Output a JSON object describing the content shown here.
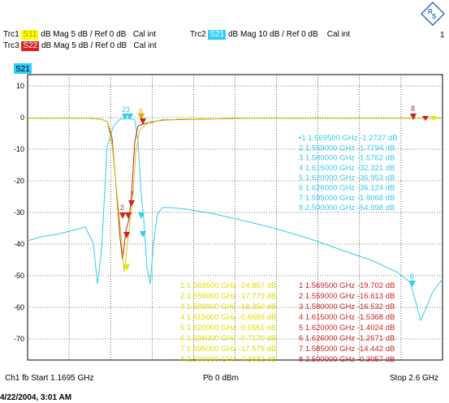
{
  "header": {
    "traces": [
      {
        "id": "Trc1",
        "param": "S11",
        "format": "dB Mag",
        "scale": "5 dB /",
        "ref": "Ref 0 dB",
        "cal": "Cal int",
        "color": "#ffff00",
        "textColor": "#b0a000"
      },
      {
        "id": "Trc2",
        "param": "S21",
        "format": "dB Mag",
        "scale": "10 dB /",
        "ref": "Ref 0 dB",
        "cal": "Cal int",
        "color": "#33ccff",
        "textColor": "#ffffff"
      },
      {
        "id": "Trc3",
        "param": "S22",
        "format": "dB Mag",
        "scale": "5 dB /",
        "ref": "Ref 0 dB",
        "cal": "Cal int",
        "color": "#dd2222",
        "textColor": "#ffffff"
      }
    ],
    "channel_number": "1"
  },
  "active_trace_label": "S21",
  "y_ticks": [
    "10",
    "0",
    "-10",
    "-20",
    "-30",
    "-40",
    "-50",
    "-60",
    "-70"
  ],
  "markers_s21": [
    {
      "n": "•1",
      "f": "1.569500 GHz",
      "v": "-1.2737 dB"
    },
    {
      "n": "2",
      "f": "1.559000 GHz",
      "v": "-1.7794 dB"
    },
    {
      "n": "3",
      "f": "1.580000 GHz",
      "v": "-1.5762 dB"
    },
    {
      "n": "4",
      "f": "1.615000 GHz",
      "v": "-32.321 dB"
    },
    {
      "n": "5",
      "f": "1.620000 GHz",
      "v": "-36.953 dB"
    },
    {
      "n": "6",
      "f": "1.626000 GHz",
      "v": "-36.124 dB"
    },
    {
      "n": "7",
      "f": "1.595000 GHz",
      "v": "-1.9068 dB"
    },
    {
      "n": "8",
      "f": "2.500000 GHz",
      "v": "-54.998 dB"
    }
  ],
  "markers_s11": [
    {
      "n": "1",
      "f": "1.569500 GHz",
      "v": "-24.857 dB"
    },
    {
      "n": "2",
      "f": "1.559000 GHz",
      "v": "-17.779 dB"
    },
    {
      "n": "3",
      "f": "1.580000 GHz",
      "v": "-18.350 dB"
    },
    {
      "n": "4",
      "f": "1.615000 GHz",
      "v": "-0.6569 dB"
    },
    {
      "n": "5",
      "f": "1.620000 GHz",
      "v": "-0.6561 dB"
    },
    {
      "n": "6",
      "f": "1.626000 GHz",
      "v": "-0.7170 dB"
    },
    {
      "n": "7",
      "f": "1.595000 GHz",
      "v": "-17.579 dB"
    },
    {
      "n": "8",
      "f": "2.500000 GHz",
      "v": "-0.3682 dB"
    }
  ],
  "markers_s22": [
    {
      "n": "1",
      "f": "1.569500 GHz",
      "v": "-19.702 dB"
    },
    {
      "n": "2",
      "f": "1.559000 GHz",
      "v": "-16.613 dB"
    },
    {
      "n": "3",
      "f": "1.580000 GHz",
      "v": "-16.532 dB"
    },
    {
      "n": "4",
      "f": "1.615000 GHz",
      "v": "-1.5368 dB"
    },
    {
      "n": "5",
      "f": "1.620000 GHz",
      "v": "-1.4024 dB"
    },
    {
      "n": "6",
      "f": "1.626000 GHz",
      "v": "-1.2671 dB"
    },
    {
      "n": "7",
      "f": "1.585000 GHz",
      "v": "-14.442 dB"
    },
    {
      "n": "8",
      "f": "2.500000 GHz",
      "v": "-0.3057 dB"
    }
  ],
  "footer": {
    "left": "Ch1  fb  Start  1.1695 GHz",
    "center": "Pb  0 dBm",
    "right": "Stop  2.6 GHz"
  },
  "timestamp": "4/22/2004, 3:01 AM",
  "colors": {
    "s11": "#e6e600",
    "s21": "#33ccee",
    "s22": "#cc2222",
    "grid": "#000000"
  }
}
